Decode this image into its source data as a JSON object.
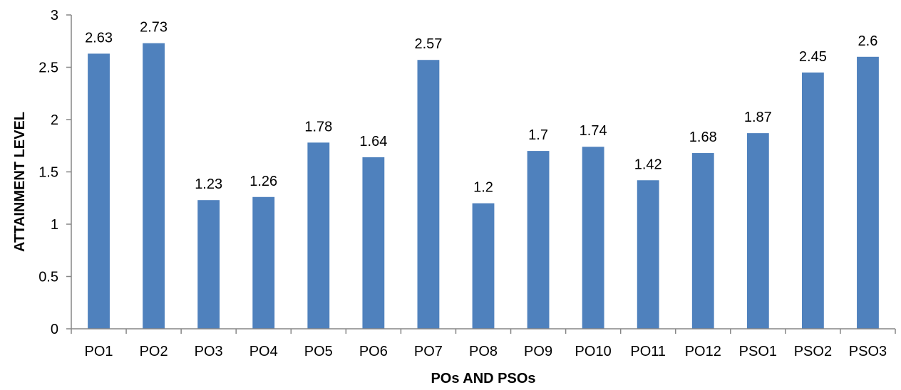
{
  "chart_data": {
    "type": "bar",
    "title": "",
    "xlabel": "POs AND PSOs",
    "ylabel": "ATTAINMENT LEVEL",
    "categories": [
      "PO1",
      "PO2",
      "PO3",
      "PO4",
      "PO5",
      "PO6",
      "PO7",
      "PO8",
      "PO9",
      "PO10",
      "PO11",
      "PO12",
      "PSO1",
      "PSO2",
      "PSO3"
    ],
    "values": [
      2.63,
      2.73,
      1.23,
      1.26,
      1.78,
      1.64,
      2.57,
      1.2,
      1.7,
      1.74,
      1.42,
      1.68,
      1.87,
      2.45,
      2.6
    ],
    "data_labels": [
      "2.63",
      "2.73",
      "1.23",
      "1.26",
      "1.78",
      "1.64",
      "2.57",
      "1.2",
      "1.7",
      "1.74",
      "1.42",
      "1.68",
      "1.87",
      "2.45",
      "2.6"
    ],
    "ylim": [
      0,
      3
    ],
    "yticks": [
      0,
      0.5,
      1,
      1.5,
      2,
      2.5,
      3
    ],
    "ytick_labels": [
      "0",
      "0.5",
      "1",
      "1.5",
      "2",
      "2.5",
      "3"
    ],
    "grid": false,
    "legend": "none",
    "bar_color": "#4F81BD"
  }
}
